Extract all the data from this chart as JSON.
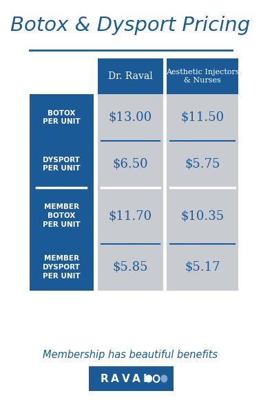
{
  "title": "Botox & Dysport Pricing",
  "title_color": "#1a5a96",
  "background_color": "#ffffff",
  "dark_blue": "#1a5a96",
  "light_gray": "#c8ccd0",
  "white": "#ffffff",
  "col_headers": [
    "Dr. Raval",
    "Aesthetic Injectors\n& Nurses"
  ],
  "row_labels": [
    "BOTOX\nPER UNIT",
    "DYSPORT\nPER UNIT",
    "MEMBER\nBOTOX\nPER UNIT",
    "MEMBER\nDYSPORT\nPER UNIT"
  ],
  "prices": [
    [
      "$13.00",
      "$11.50"
    ],
    [
      "$6.50",
      "$5.75"
    ],
    [
      "$11.70",
      "$10.35"
    ],
    [
      "$5.85",
      "$5.17"
    ]
  ],
  "footer_text": "Membership has beautiful benefits",
  "logo_text": "RAVAL",
  "dot_colors": [
    "#ffffff",
    "#1a5a96",
    "#7ba7d0"
  ]
}
